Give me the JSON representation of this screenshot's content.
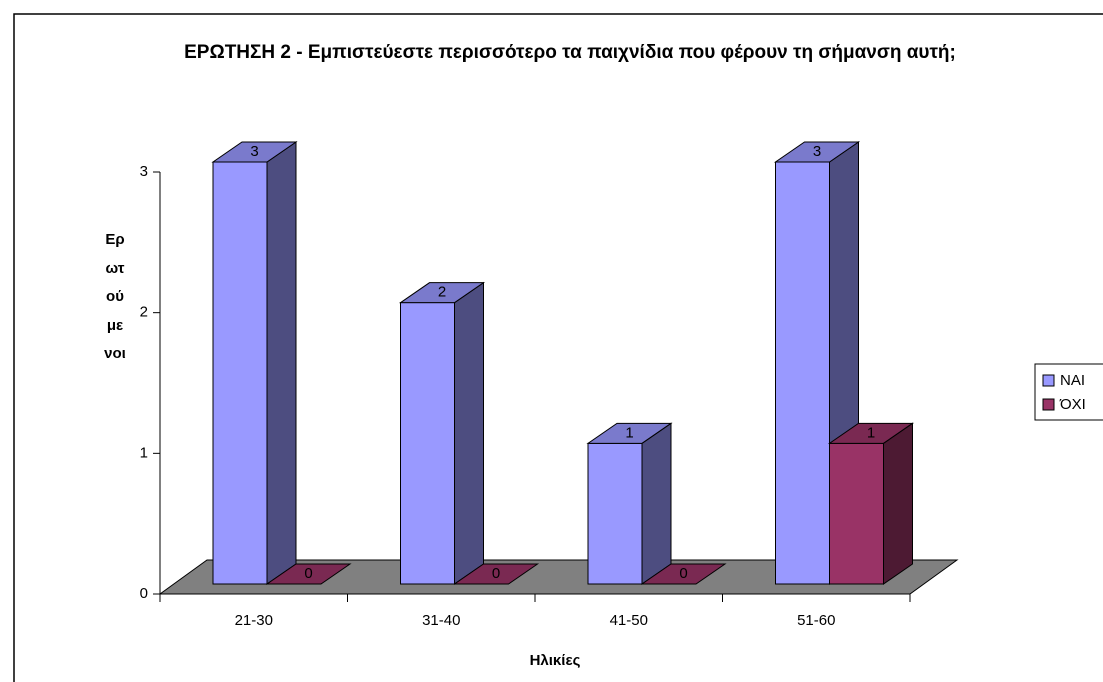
{
  "chart_data": {
    "type": "bar3d",
    "title": "ΕΡΩΤΗΣΗ 2 - Εμπιστεύεστε περισσότερο τα παιχνίδια που φέρουν τη σήμανση αυτή;",
    "x_label": "Ηλικίες",
    "y_label": "Ερωτούμενοι",
    "categories": [
      "21-30",
      "31-40",
      "41-50",
      "51-60"
    ],
    "series": [
      {
        "name": "ΝΑΙ",
        "color": "#9999ff",
        "values": [
          3,
          2,
          1,
          3
        ]
      },
      {
        "name": "ΌΧΙ",
        "color": "#993366",
        "values": [
          0,
          0,
          0,
          1
        ]
      }
    ],
    "ylim": [
      0,
      3
    ],
    "yticks": [
      0,
      1,
      2,
      3
    ],
    "legend": "right"
  }
}
